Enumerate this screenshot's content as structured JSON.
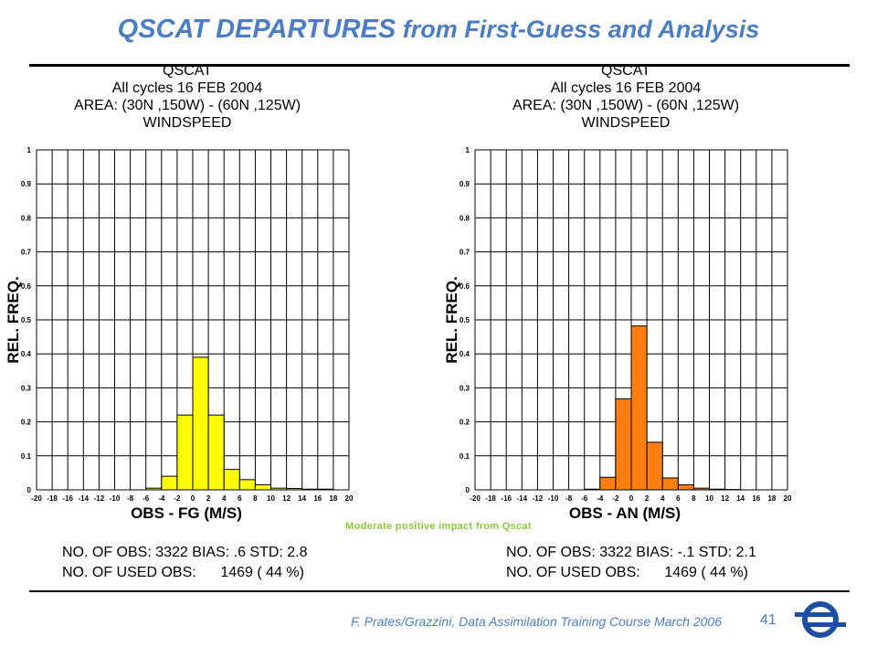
{
  "title": {
    "strong": "QSCAT DEPARTURES",
    "rest": " from First-Guess and Analysis"
  },
  "annotation": "Moderate positive impact from Qscat",
  "footer": "F. Prates/Grazzini,  Data Assimilation Training Course March 2006",
  "page_number": "41",
  "colors": {
    "title": "#4a7dc4",
    "annotation": "#8dc63f",
    "fg_bars": "#ffff00",
    "an_bars": "#ff7f0e"
  },
  "chart_data": [
    {
      "type": "bar",
      "header": [
        "QSCAT",
        "All cycles 16 FEB 2004",
        "AREA: (30N ,150W) - (60N ,125W)",
        "WINDSPEED"
      ],
      "xlabel": "OBS - FG (M/S)",
      "ylabel": "REL. FREQ.",
      "xlim": [
        -20,
        20
      ],
      "ylim": [
        0,
        1
      ],
      "x_ticks": [
        -20,
        -18,
        -16,
        -14,
        -12,
        -10,
        -8,
        -6,
        -4,
        -2,
        0,
        2,
        4,
        6,
        8,
        10,
        12,
        14,
        16,
        18,
        20
      ],
      "y_ticks": [
        "0",
        "0.1",
        "0.2",
        "0.3",
        "0.4",
        "0.5",
        "0.6",
        "0.7",
        "0.8",
        "0.9",
        "1"
      ],
      "bin_width": 2,
      "bin_starts": [
        -6,
        -4,
        -2,
        0,
        2,
        4,
        6,
        8,
        10,
        12,
        14,
        16
      ],
      "values": [
        0.005,
        0.04,
        0.22,
        0.39,
        0.22,
        0.06,
        0.03,
        0.015,
        0.005,
        0.004,
        0.002,
        0.002
      ],
      "color": "#ffff00",
      "grid": true,
      "stats": [
        "NO. OF OBS: 3322 BIAS: .6 STD: 2.8",
        "NO. OF USED OBS:      1469 ( 44 %)"
      ]
    },
    {
      "type": "bar",
      "header": [
        "QSCAT",
        "All cycles 16 FEB 2004",
        "AREA: (30N ,150W) - (60N ,125W)",
        "WINDSPEED"
      ],
      "xlabel": "OBS - AN (M/S)",
      "ylabel": "REL. FREQ.",
      "xlim": [
        -20,
        20
      ],
      "ylim": [
        0,
        1
      ],
      "x_ticks": [
        -20,
        -18,
        -16,
        -14,
        -12,
        -10,
        -8,
        -6,
        -4,
        -2,
        0,
        2,
        4,
        6,
        8,
        10,
        12,
        14,
        16,
        18,
        20
      ],
      "y_ticks": [
        "0",
        "0.1",
        "0.2",
        "0.3",
        "0.4",
        "0.5",
        "0.6",
        "0.7",
        "0.8",
        "0.9",
        "1"
      ],
      "bin_width": 2,
      "bin_starts": [
        -6,
        -4,
        -2,
        0,
        2,
        4,
        6,
        8,
        10,
        12
      ],
      "values": [
        0.002,
        0.037,
        0.268,
        0.482,
        0.14,
        0.035,
        0.015,
        0.005,
        0.002,
        0.001
      ],
      "color": "#ff7f0e",
      "grid": true,
      "stats": [
        "NO. OF OBS: 3322 BIAS: -.1 STD: 2.1",
        "NO. OF USED OBS:      1469 ( 44 %)"
      ]
    }
  ]
}
